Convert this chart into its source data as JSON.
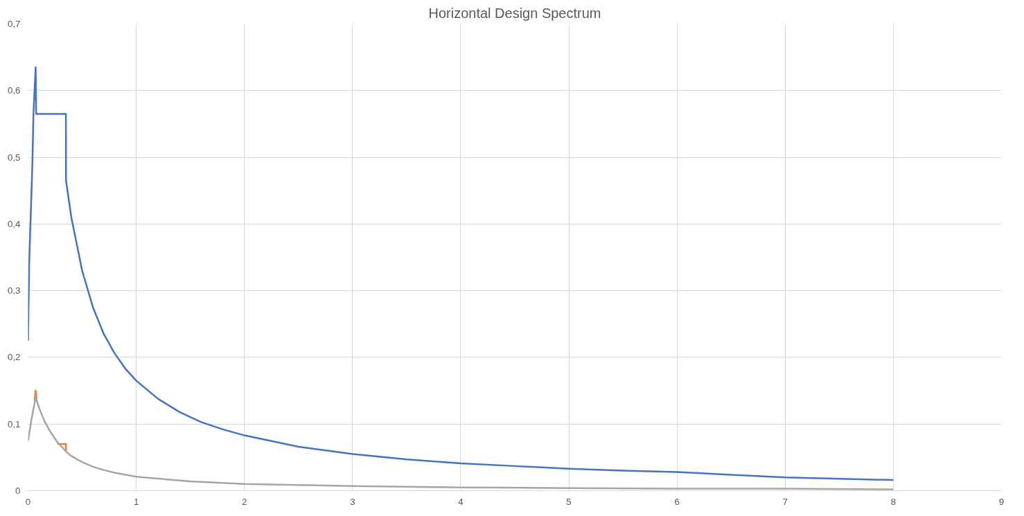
{
  "chart_data": {
    "type": "line",
    "title": "Horizontal Design Spectrum",
    "series": [
      {
        "color": "#4472c4",
        "x": [
          0,
          0.01,
          0.04,
          0.05,
          0.07,
          0.075,
          0.35,
          0.351,
          0.4,
          0.5,
          0.6,
          0.7,
          0.8,
          0.9,
          1,
          1.2,
          1.4,
          1.6,
          1.8,
          2,
          2.5,
          3,
          3.5,
          4,
          4.5,
          5,
          5.5,
          6,
          6.5,
          7,
          7.5,
          8
        ],
        "values": [
          0.225,
          0.34,
          0.49,
          0.565,
          0.635,
          0.565,
          0.565,
          0.465,
          0.41,
          0.33,
          0.275,
          0.235,
          0.206,
          0.183,
          0.165,
          0.138,
          0.118,
          0.103,
          0.092,
          0.083,
          0.066,
          0.055,
          0.047,
          0.041,
          0.037,
          0.033,
          0.03,
          0.028,
          0.024,
          0.02,
          0.018,
          0.016
        ]
      },
      {
        "color": "#ed7d31",
        "x": [
          0.06,
          0.07,
          0.08,
          0.2,
          0.27,
          0.35,
          0.351
        ],
        "values": [
          0.135,
          0.15,
          0.135,
          null,
          0.07,
          0.07,
          0.059
        ]
      },
      {
        "color": "#a5a5a5",
        "x": [
          0,
          0.03,
          0.07,
          0.1,
          0.15,
          0.2,
          0.27,
          0.35,
          0.4,
          0.5,
          0.6,
          0.7,
          0.8,
          1,
          1.5,
          2,
          3,
          4,
          5,
          6,
          7,
          8
        ],
        "values": [
          0.075,
          0.105,
          0.14,
          0.125,
          0.105,
          0.09,
          0.073,
          0.059,
          0.052,
          0.043,
          0.036,
          0.031,
          0.027,
          0.021,
          0.014,
          0.01,
          0.007,
          0.005,
          0.004,
          0.003,
          0.003,
          0.002
        ]
      }
    ],
    "xlim": [
      0,
      9
    ],
    "xticks": [
      0,
      1,
      2,
      3,
      4,
      5,
      6,
      7,
      8,
      9
    ],
    "ylim": [
      0,
      0.7
    ],
    "yticks": [
      0,
      {
        "value": 0.1,
        "label": "0,1"
      },
      {
        "value": 0.2,
        "label": "0,2"
      },
      {
        "value": 0.3,
        "label": "0,3"
      },
      {
        "value": 0.4,
        "label": "0,4"
      },
      {
        "value": 0.5,
        "label": "0,5"
      },
      {
        "value": 0.6,
        "label": "0,6"
      },
      {
        "value": 0.7,
        "label": "0,7"
      }
    ],
    "grid": true,
    "marker": "none",
    "line_style": "solid"
  }
}
